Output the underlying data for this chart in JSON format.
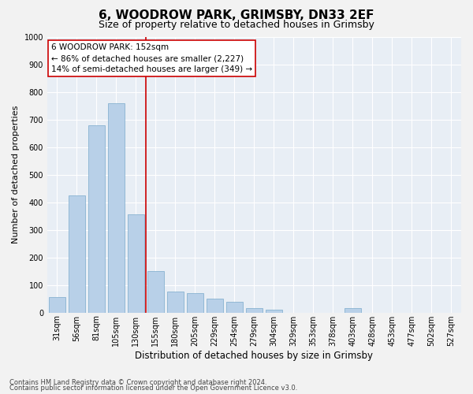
{
  "title": "6, WOODROW PARK, GRIMSBY, DN33 2EF",
  "subtitle": "Size of property relative to detached houses in Grimsby",
  "xlabel": "Distribution of detached houses by size in Grimsby",
  "ylabel": "Number of detached properties",
  "footnote1": "Contains HM Land Registry data © Crown copyright and database right 2024.",
  "footnote2": "Contains public sector information licensed under the Open Government Licence v3.0.",
  "annotation_line1": "6 WOODROW PARK: 152sqm",
  "annotation_line2": "← 86% of detached houses are smaller (2,227)",
  "annotation_line3": "14% of semi-detached houses are larger (349) →",
  "categories": [
    "31sqm",
    "56sqm",
    "81sqm",
    "105sqm",
    "130sqm",
    "155sqm",
    "180sqm",
    "205sqm",
    "229sqm",
    "254sqm",
    "279sqm",
    "304sqm",
    "329sqm",
    "353sqm",
    "378sqm",
    "403sqm",
    "428sqm",
    "453sqm",
    "477sqm",
    "502sqm",
    "527sqm"
  ],
  "values": [
    55,
    425,
    680,
    760,
    355,
    150,
    75,
    70,
    50,
    40,
    15,
    10,
    0,
    0,
    0,
    15,
    0,
    0,
    0,
    0,
    0
  ],
  "bar_color": "#b8d0e8",
  "bar_edge_color": "#7aaacb",
  "vline_color": "#cc0000",
  "vline_x_idx": 4.5,
  "ylim": [
    0,
    1000
  ],
  "yticks": [
    0,
    100,
    200,
    300,
    400,
    500,
    600,
    700,
    800,
    900,
    1000
  ],
  "fig_bg": "#f2f2f2",
  "plot_bg": "#e8eef5",
  "grid_color": "#ffffff",
  "annotation_box_bg": "#ffffff",
  "annotation_box_edge": "#cc0000",
  "title_fontsize": 11,
  "subtitle_fontsize": 9,
  "ylabel_fontsize": 8,
  "xlabel_fontsize": 8.5,
  "tick_fontsize": 7,
  "annotation_fontsize": 7.5,
  "footnote_fontsize": 6
}
